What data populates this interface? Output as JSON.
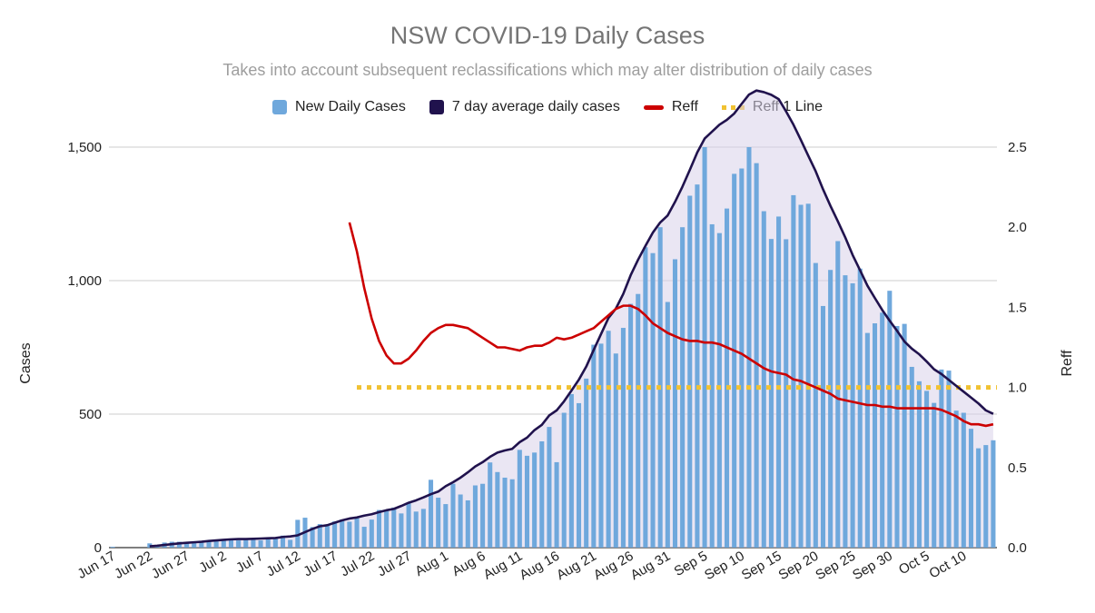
{
  "chart_data": {
    "type": "bar+line",
    "title": "NSW COVID-19 Daily Cases",
    "subtitle": "Takes into account subsequent reclassifications which may alter distribution of daily cases",
    "y_left_label": "Cases",
    "y_right_label": "Reff",
    "y_left_range": [
      0,
      1500
    ],
    "y_right_range": [
      0,
      2.5
    ],
    "y_left_ticks": [
      0,
      500,
      1000,
      1500
    ],
    "y_left_tick_labels": [
      "0",
      "500",
      "1,000",
      "1,500"
    ],
    "y_right_ticks": [
      0,
      0.5,
      1.0,
      1.5,
      2.0,
      2.5
    ],
    "y_right_tick_labels": [
      "0.0",
      "0.5",
      "1.0",
      "1.5",
      "2.0",
      "2.5"
    ],
    "x_tick_labels": [
      "Jun 17",
      "Jun 22",
      "Jun 27",
      "Jul 2",
      "Jul 7",
      "Jul 12",
      "Jul 17",
      "Jul 22",
      "Jul 27",
      "Aug 1",
      "Aug 6",
      "Aug 11",
      "Aug 16",
      "Aug 21",
      "Aug 26",
      "Aug 31",
      "Sep 5",
      "Sep 10",
      "Sep 15",
      "Sep 20",
      "Sep 25",
      "Sep 30",
      "Oct 5",
      "Oct 10"
    ],
    "x_tick_interval_days": 5,
    "first_date": "Jun 17",
    "legend": [
      "New Daily Cases",
      "7 day average daily cases",
      "Reff",
      "Reff 1 Line"
    ],
    "colors": {
      "bars": "#6fa8dc",
      "avg": "#20124d",
      "reff": "#cc0000",
      "reff1": "#f1c232",
      "fill": "#d9d2e9"
    },
    "series": [
      {
        "name": "New Daily Cases",
        "type": "bar",
        "axis": "left",
        "values": [
          3,
          0,
          0,
          0,
          0,
          16,
          10,
          19,
          22,
          22,
          18,
          24,
          24,
          27,
          29,
          30,
          34,
          27,
          29,
          30,
          27,
          31,
          35,
          45,
          29,
          104,
          112,
          77,
          88,
          83,
          98,
          105,
          97,
          111,
          78,
          105,
          141,
          141,
          150,
          128,
          165,
          135,
          145,
          254,
          187,
          163,
          239,
          199,
          177,
          233,
          239,
          319,
          283,
          262,
          256,
          366,
          344,
          356,
          398,
          452,
          320,
          505,
          575,
          541,
          633,
          760,
          764,
          812,
          727,
          823,
          913,
          950,
          1125,
          1103,
          1200,
          920,
          1080,
          1200,
          1318,
          1360,
          1500,
          1211,
          1178,
          1270,
          1400,
          1420,
          1500,
          1440,
          1260,
          1156,
          1240,
          1155,
          1320,
          1284,
          1288,
          1066,
          905,
          1040,
          1148,
          1020,
          990,
          1045,
          804,
          840,
          880,
          962,
          830,
          838,
          677,
          623,
          587,
          542,
          667,
          663,
          513,
          505,
          445,
          372,
          384,
          402
        ]
      },
      {
        "name": "7 day average daily cases",
        "type": "line",
        "axis": "left",
        "values": [
          null,
          null,
          null,
          null,
          null,
          5,
          7,
          10,
          13,
          16,
          18,
          20,
          22,
          25,
          27,
          29,
          31,
          32,
          32,
          33,
          34,
          35,
          36,
          40,
          42,
          46,
          58,
          70,
          80,
          84,
          93,
          102,
          109,
          113,
          120,
          125,
          133,
          140,
          145,
          156,
          168,
          177,
          188,
          200,
          210,
          230,
          245,
          262,
          282,
          304,
          320,
          340,
          356,
          364,
          370,
          395,
          412,
          440,
          460,
          495,
          514,
          548,
          588,
          629,
          678,
          740,
          800,
          860,
          895,
          950,
          1020,
          1078,
          1130,
          1180,
          1218,
          1244,
          1295,
          1352,
          1415,
          1480,
          1532,
          1558,
          1584,
          1602,
          1626,
          1662,
          1697,
          1712,
          1706,
          1696,
          1680,
          1634,
          1584,
          1527,
          1468,
          1410,
          1342,
          1280,
          1222,
          1162,
          1096,
          1039,
          981,
          935,
          890,
          850,
          812,
          772,
          745,
          724,
          697,
          668,
          650,
          628,
          606,
          584,
          562,
          540,
          514,
          501
        ]
      },
      {
        "name": "Reff",
        "type": "line",
        "axis": "right",
        "values": [
          null,
          null,
          null,
          null,
          null,
          null,
          null,
          null,
          null,
          null,
          null,
          null,
          null,
          null,
          null,
          null,
          null,
          null,
          null,
          null,
          null,
          null,
          null,
          null,
          null,
          null,
          null,
          null,
          null,
          null,
          null,
          null,
          2.03,
          1.85,
          1.62,
          1.43,
          1.29,
          1.2,
          1.15,
          1.15,
          1.18,
          1.23,
          1.29,
          1.34,
          1.37,
          1.39,
          1.39,
          1.38,
          1.37,
          1.34,
          1.31,
          1.28,
          1.25,
          1.25,
          1.24,
          1.23,
          1.25,
          1.26,
          1.26,
          1.28,
          1.31,
          1.3,
          1.31,
          1.33,
          1.35,
          1.37,
          1.41,
          1.45,
          1.49,
          1.51,
          1.51,
          1.49,
          1.45,
          1.4,
          1.37,
          1.34,
          1.32,
          1.3,
          1.29,
          1.29,
          1.28,
          1.28,
          1.27,
          1.25,
          1.23,
          1.21,
          1.18,
          1.15,
          1.12,
          1.1,
          1.09,
          1.08,
          1.05,
          1.04,
          1.02,
          1,
          0.98,
          0.96,
          0.93,
          0.92,
          0.91,
          0.9,
          0.89,
          0.89,
          0.88,
          0.88,
          0.87,
          0.87,
          0.87,
          0.87,
          0.87,
          0.87,
          0.86,
          0.84,
          0.82,
          0.79,
          0.77,
          0.77,
          0.76,
          0.77
        ]
      },
      {
        "name": "Reff 1 Line",
        "type": "line",
        "axis": "right",
        "style": "dotted",
        "x_from_index": 33,
        "values_constant": 1.0
      }
    ]
  }
}
